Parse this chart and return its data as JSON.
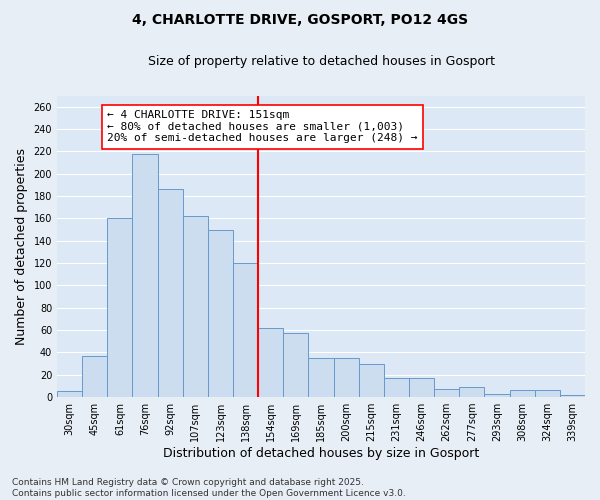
{
  "title_line1": "4, CHARLOTTE DRIVE, GOSPORT, PO12 4GS",
  "title_line2": "Size of property relative to detached houses in Gosport",
  "xlabel": "Distribution of detached houses by size in Gosport",
  "ylabel": "Number of detached properties",
  "bar_color": "#ccddf0",
  "bar_edge_color": "#6699cc",
  "bar_edge_width": 0.7,
  "categories": [
    "30sqm",
    "45sqm",
    "61sqm",
    "76sqm",
    "92sqm",
    "107sqm",
    "123sqm",
    "138sqm",
    "154sqm",
    "169sqm",
    "185sqm",
    "200sqm",
    "215sqm",
    "231sqm",
    "246sqm",
    "262sqm",
    "277sqm",
    "293sqm",
    "308sqm",
    "324sqm",
    "339sqm"
  ],
  "values": [
    5,
    37,
    160,
    218,
    186,
    162,
    150,
    120,
    62,
    57,
    35,
    35,
    30,
    17,
    17,
    7,
    9,
    3,
    6,
    6,
    2
  ],
  "ylim": [
    0,
    270
  ],
  "yticks": [
    0,
    20,
    40,
    60,
    80,
    100,
    120,
    140,
    160,
    180,
    200,
    220,
    240,
    260
  ],
  "property_line_x": 8,
  "annotation_line1": "← 4 CHARLOTTE DRIVE: 151sqm",
  "annotation_line2": "← 80% of detached houses are smaller (1,003)",
  "annotation_line3": "20% of semi-detached houses are larger (248) →",
  "footer_line1": "Contains HM Land Registry data © Crown copyright and database right 2025.",
  "footer_line2": "Contains public sector information licensed under the Open Government Licence v3.0.",
  "background_color": "#e8eef5",
  "plot_background_color": "#dce8f5",
  "grid_color": "#ffffff",
  "title_fontsize": 10,
  "subtitle_fontsize": 9,
  "axis_label_fontsize": 9,
  "tick_fontsize": 7,
  "annotation_fontsize": 8,
  "footer_fontsize": 6.5
}
